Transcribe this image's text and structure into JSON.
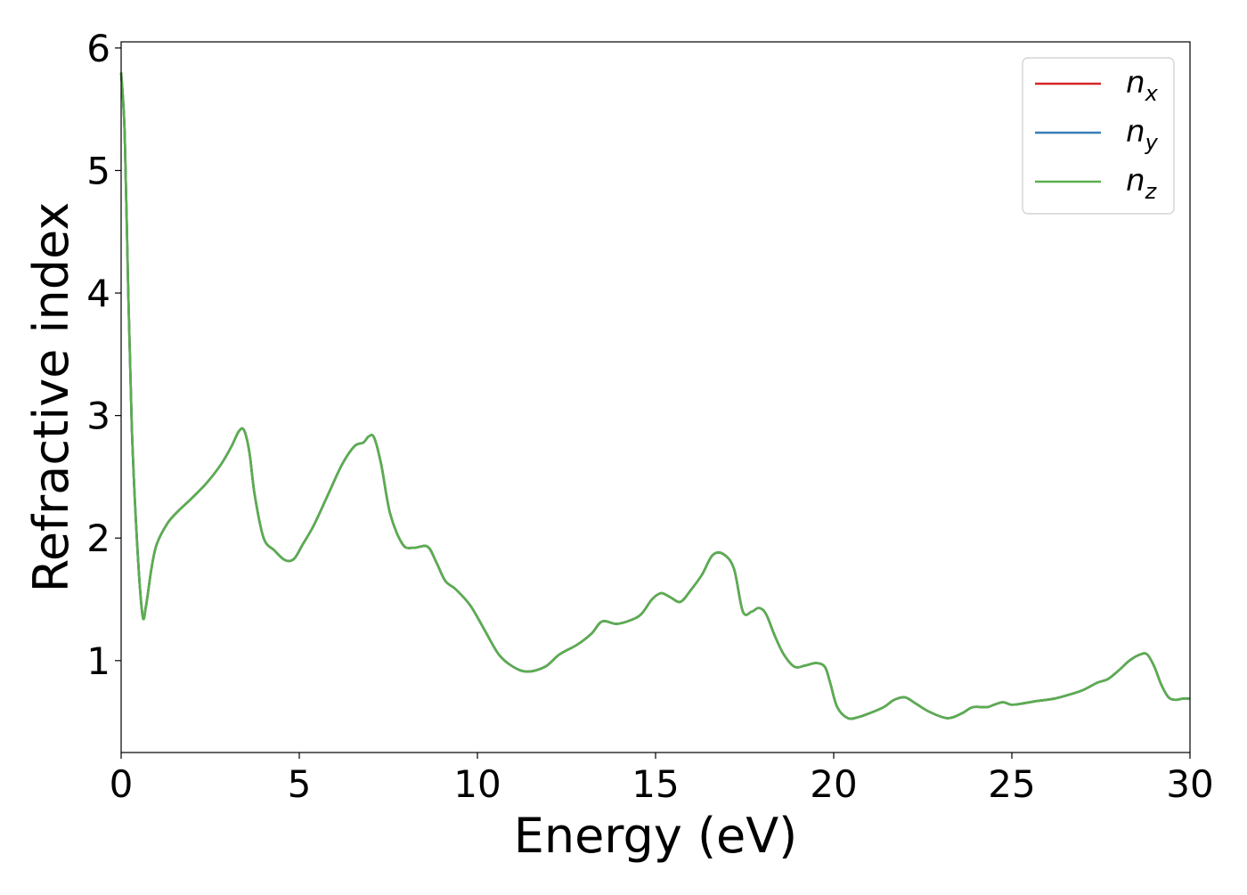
{
  "chart_data": {
    "type": "line",
    "xlabel": "Energy (eV)",
    "ylabel": "Refractive index",
    "xlim": [
      0,
      30
    ],
    "ylim": [
      0.25,
      6.05
    ],
    "x_ticks": [
      0,
      5,
      10,
      15,
      20,
      25,
      30
    ],
    "y_ticks": [
      1,
      2,
      3,
      4,
      5,
      6
    ],
    "grid": false,
    "legend_position": "top-right",
    "series": [
      {
        "name": "n",
        "subscript": "x",
        "color": "#d62728",
        "x": [
          0,
          0.1,
          0.2,
          0.3,
          0.45,
          0.6,
          0.7,
          0.85,
          1.0,
          1.3,
          1.6,
          2.0,
          2.4,
          2.8,
          3.1,
          3.3,
          3.45,
          3.6,
          3.75,
          4.0,
          4.3,
          4.6,
          4.85,
          5.1,
          5.4,
          5.8,
          6.2,
          6.55,
          6.8,
          6.95,
          7.1,
          7.3,
          7.55,
          7.9,
          8.2,
          8.6,
          8.85,
          9.1,
          9.4,
          9.8,
          10.2,
          10.6,
          11.0,
          11.4,
          11.9,
          12.3,
          12.8,
          13.2,
          13.5,
          13.9,
          14.3,
          14.6,
          14.9,
          15.15,
          15.4,
          15.7,
          16.0,
          16.3,
          16.6,
          16.9,
          17.2,
          17.45,
          17.7,
          17.9,
          18.1,
          18.35,
          18.6,
          18.9,
          19.2,
          19.5,
          19.75,
          19.9,
          20.1,
          20.4,
          20.7,
          21.0,
          21.4,
          21.7,
          22.0,
          22.3,
          22.7,
          23.2,
          23.6,
          23.9,
          24.3,
          24.5,
          24.75,
          25.0,
          25.3,
          25.7,
          26.2,
          26.7,
          27.0,
          27.4,
          27.7,
          28.0,
          28.3,
          28.6,
          28.8,
          29.0,
          29.2,
          29.4,
          29.6,
          29.8,
          30.0
        ],
        "y": [
          5.8,
          5.3,
          4.0,
          2.9,
          1.95,
          1.37,
          1.45,
          1.75,
          1.95,
          2.12,
          2.22,
          2.33,
          2.45,
          2.6,
          2.75,
          2.87,
          2.88,
          2.7,
          2.35,
          2.0,
          1.9,
          1.82,
          1.83,
          1.95,
          2.1,
          2.35,
          2.6,
          2.75,
          2.78,
          2.83,
          2.82,
          2.6,
          2.2,
          1.95,
          1.92,
          1.93,
          1.8,
          1.65,
          1.58,
          1.45,
          1.25,
          1.05,
          0.95,
          0.91,
          0.95,
          1.05,
          1.13,
          1.22,
          1.32,
          1.3,
          1.33,
          1.38,
          1.5,
          1.55,
          1.52,
          1.48,
          1.58,
          1.7,
          1.86,
          1.87,
          1.75,
          1.4,
          1.4,
          1.43,
          1.38,
          1.2,
          1.05,
          0.95,
          0.96,
          0.98,
          0.95,
          0.82,
          0.62,
          0.53,
          0.54,
          0.57,
          0.62,
          0.68,
          0.7,
          0.65,
          0.58,
          0.53,
          0.57,
          0.62,
          0.62,
          0.64,
          0.66,
          0.64,
          0.65,
          0.67,
          0.69,
          0.73,
          0.76,
          0.82,
          0.85,
          0.92,
          1.0,
          1.05,
          1.05,
          0.95,
          0.8,
          0.7,
          0.68,
          0.69,
          0.69
        ]
      },
      {
        "name": "n",
        "subscript": "y",
        "color": "#377eb8",
        "x": [
          0,
          0.1,
          0.2,
          0.3,
          0.45,
          0.6,
          0.7,
          0.85,
          1.0,
          1.3,
          1.6,
          2.0,
          2.4,
          2.8,
          3.1,
          3.3,
          3.45,
          3.6,
          3.75,
          4.0,
          4.3,
          4.6,
          4.85,
          5.1,
          5.4,
          5.8,
          6.2,
          6.55,
          6.8,
          6.95,
          7.1,
          7.3,
          7.55,
          7.9,
          8.2,
          8.6,
          8.85,
          9.1,
          9.4,
          9.8,
          10.2,
          10.6,
          11.0,
          11.4,
          11.9,
          12.3,
          12.8,
          13.2,
          13.5,
          13.9,
          14.3,
          14.6,
          14.9,
          15.15,
          15.4,
          15.7,
          16.0,
          16.3,
          16.6,
          16.9,
          17.2,
          17.45,
          17.7,
          17.9,
          18.1,
          18.35,
          18.6,
          18.9,
          19.2,
          19.5,
          19.75,
          19.9,
          20.1,
          20.4,
          20.7,
          21.0,
          21.4,
          21.7,
          22.0,
          22.3,
          22.7,
          23.2,
          23.6,
          23.9,
          24.3,
          24.5,
          24.75,
          25.0,
          25.3,
          25.7,
          26.2,
          26.7,
          27.0,
          27.4,
          27.7,
          28.0,
          28.3,
          28.6,
          28.8,
          29.0,
          29.2,
          29.4,
          29.6,
          29.8,
          30.0
        ],
        "y": [
          5.8,
          5.3,
          4.0,
          2.9,
          1.95,
          1.37,
          1.45,
          1.75,
          1.95,
          2.12,
          2.22,
          2.33,
          2.45,
          2.6,
          2.75,
          2.87,
          2.88,
          2.7,
          2.35,
          2.0,
          1.9,
          1.82,
          1.83,
          1.95,
          2.1,
          2.35,
          2.6,
          2.75,
          2.78,
          2.83,
          2.82,
          2.6,
          2.2,
          1.95,
          1.92,
          1.93,
          1.8,
          1.65,
          1.58,
          1.45,
          1.25,
          1.05,
          0.95,
          0.91,
          0.95,
          1.05,
          1.13,
          1.22,
          1.32,
          1.3,
          1.33,
          1.38,
          1.5,
          1.55,
          1.52,
          1.48,
          1.58,
          1.7,
          1.86,
          1.87,
          1.75,
          1.4,
          1.4,
          1.43,
          1.38,
          1.2,
          1.05,
          0.95,
          0.96,
          0.98,
          0.95,
          0.82,
          0.62,
          0.53,
          0.54,
          0.57,
          0.62,
          0.68,
          0.7,
          0.65,
          0.58,
          0.53,
          0.57,
          0.62,
          0.62,
          0.64,
          0.66,
          0.64,
          0.65,
          0.67,
          0.69,
          0.73,
          0.76,
          0.82,
          0.85,
          0.92,
          1.0,
          1.05,
          1.05,
          0.95,
          0.8,
          0.7,
          0.68,
          0.69,
          0.69
        ]
      },
      {
        "name": "n",
        "subscript": "z",
        "color": "#5aae4e",
        "x": [
          0,
          0.1,
          0.2,
          0.3,
          0.45,
          0.6,
          0.7,
          0.85,
          1.0,
          1.3,
          1.6,
          2.0,
          2.4,
          2.8,
          3.1,
          3.3,
          3.45,
          3.6,
          3.75,
          4.0,
          4.3,
          4.6,
          4.85,
          5.1,
          5.4,
          5.8,
          6.2,
          6.55,
          6.8,
          6.95,
          7.1,
          7.3,
          7.55,
          7.9,
          8.2,
          8.6,
          8.85,
          9.1,
          9.4,
          9.8,
          10.2,
          10.6,
          11.0,
          11.4,
          11.9,
          12.3,
          12.8,
          13.2,
          13.5,
          13.9,
          14.3,
          14.6,
          14.9,
          15.15,
          15.4,
          15.7,
          16.0,
          16.3,
          16.6,
          16.9,
          17.2,
          17.45,
          17.7,
          17.9,
          18.1,
          18.35,
          18.6,
          18.9,
          19.2,
          19.5,
          19.75,
          19.9,
          20.1,
          20.4,
          20.7,
          21.0,
          21.4,
          21.7,
          22.0,
          22.3,
          22.7,
          23.2,
          23.6,
          23.9,
          24.3,
          24.5,
          24.75,
          25.0,
          25.3,
          25.7,
          26.2,
          26.7,
          27.0,
          27.4,
          27.7,
          28.0,
          28.3,
          28.6,
          28.8,
          29.0,
          29.2,
          29.4,
          29.6,
          29.8,
          30.0
        ],
        "y": [
          5.8,
          5.3,
          4.0,
          2.9,
          1.95,
          1.37,
          1.45,
          1.75,
          1.95,
          2.12,
          2.22,
          2.33,
          2.45,
          2.6,
          2.75,
          2.87,
          2.88,
          2.7,
          2.35,
          2.0,
          1.9,
          1.82,
          1.83,
          1.95,
          2.1,
          2.35,
          2.6,
          2.75,
          2.78,
          2.83,
          2.82,
          2.6,
          2.2,
          1.95,
          1.92,
          1.93,
          1.8,
          1.65,
          1.58,
          1.45,
          1.25,
          1.05,
          0.95,
          0.91,
          0.95,
          1.05,
          1.13,
          1.22,
          1.32,
          1.3,
          1.33,
          1.38,
          1.5,
          1.55,
          1.52,
          1.48,
          1.58,
          1.7,
          1.86,
          1.87,
          1.75,
          1.4,
          1.4,
          1.43,
          1.38,
          1.2,
          1.05,
          0.95,
          0.96,
          0.98,
          0.95,
          0.82,
          0.62,
          0.53,
          0.54,
          0.57,
          0.62,
          0.68,
          0.7,
          0.65,
          0.58,
          0.53,
          0.57,
          0.62,
          0.62,
          0.64,
          0.66,
          0.64,
          0.65,
          0.67,
          0.69,
          0.73,
          0.76,
          0.82,
          0.85,
          0.92,
          1.0,
          1.05,
          1.05,
          0.95,
          0.8,
          0.7,
          0.68,
          0.69,
          0.69
        ]
      }
    ]
  }
}
